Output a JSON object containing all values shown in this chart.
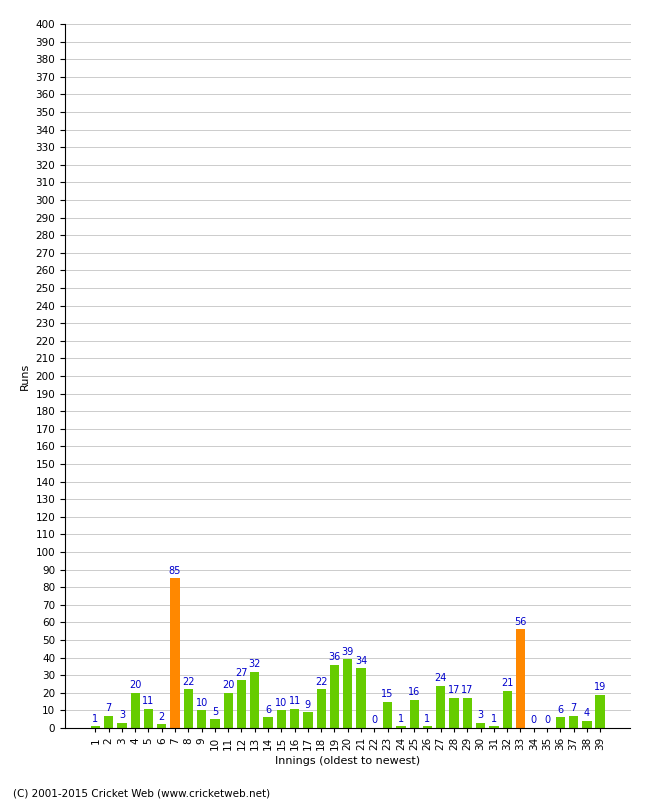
{
  "xlabel": "Innings (oldest to newest)",
  "ylabel": "Runs",
  "values": [
    1,
    7,
    3,
    20,
    11,
    2,
    85,
    22,
    10,
    5,
    20,
    27,
    32,
    6,
    10,
    11,
    9,
    22,
    36,
    39,
    34,
    0,
    15,
    1,
    16,
    1,
    24,
    17,
    17,
    3,
    1,
    21,
    56,
    0,
    0,
    6,
    7,
    4,
    19
  ],
  "innings": [
    1,
    2,
    3,
    4,
    5,
    6,
    7,
    8,
    9,
    10,
    11,
    12,
    13,
    14,
    15,
    16,
    17,
    18,
    19,
    20,
    21,
    22,
    23,
    24,
    25,
    26,
    27,
    28,
    29,
    30,
    31,
    32,
    33,
    34,
    35,
    36,
    37,
    38,
    39
  ],
  "highlight_indices": [
    6,
    32
  ],
  "bar_color": "#66cc00",
  "highlight_color": "#ff8800",
  "label_color": "#0000cc",
  "background_color": "#ffffff",
  "grid_color": "#cccccc",
  "ylim": [
    0,
    400
  ],
  "ytick_step": 10,
  "label_fontsize": 8,
  "tick_fontsize": 7.5,
  "value_label_fontsize": 7,
  "footer": "(C) 2001-2015 Cricket Web (www.cricketweb.net)"
}
